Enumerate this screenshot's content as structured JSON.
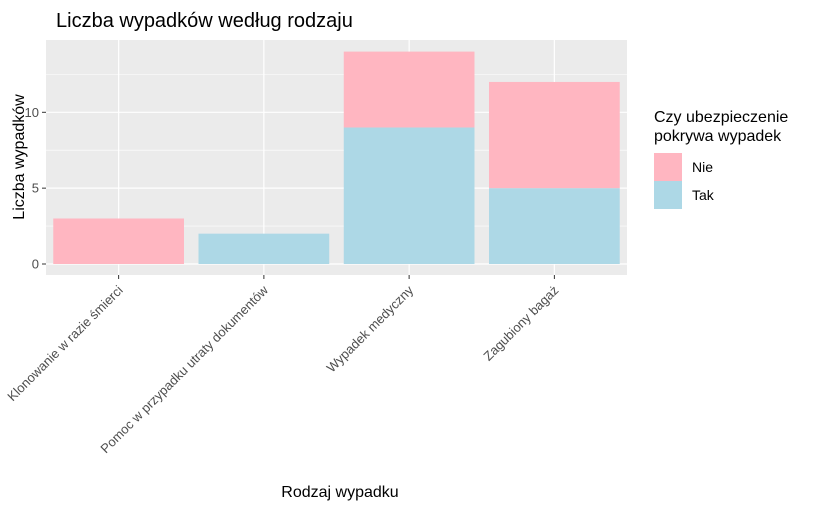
{
  "chart_data": {
    "type": "bar",
    "stacked": true,
    "title": "Liczba wypadków według rodzaju",
    "xlabel": "Rodzaj wypadku",
    "ylabel": "Liczba wypadków",
    "categories": [
      "Klonowanie w razie śmierci",
      "Pomoc w przypadku utraty dokumentów",
      "Wypadek medyczny",
      "Zagubiony bagaż"
    ],
    "series": [
      {
        "name": "Tak",
        "color": "#ADD8E6",
        "values": [
          0,
          2,
          9,
          5
        ]
      },
      {
        "name": "Nie",
        "color": "#FFB6C1",
        "values": [
          3,
          0,
          5,
          7
        ]
      }
    ],
    "ylim": [
      0,
      14.7
    ],
    "yticks": [
      0,
      5,
      10
    ],
    "grid": true,
    "legend": {
      "title_lines": [
        "Czy ubezpieczenie",
        "pokrywa wypadek"
      ],
      "entries": [
        {
          "label": "Nie",
          "color": "#FFB6C1"
        },
        {
          "label": "Tak",
          "color": "#ADD8E6"
        }
      ],
      "position": "right"
    }
  }
}
